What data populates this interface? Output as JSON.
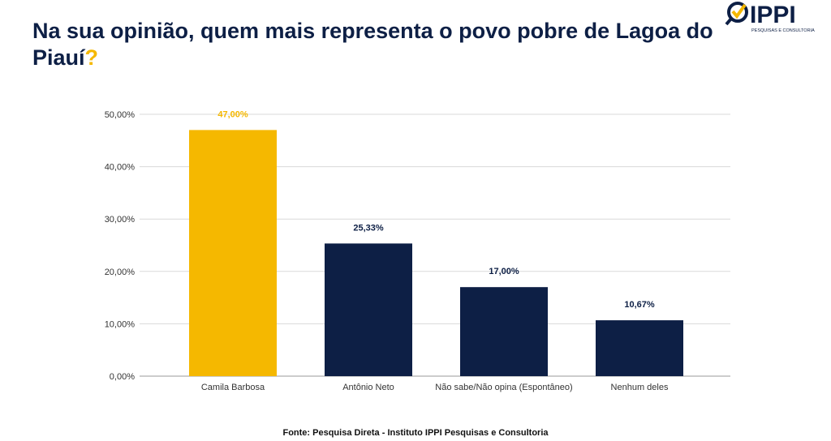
{
  "title": {
    "main": "Na sua opinião, quem mais representa o povo pobre de Lagoa do Piauí",
    "mark": "?"
  },
  "logo": {
    "text": "IPPI",
    "subtitle": "PESQUISAS E CONSULTORIA"
  },
  "footer": "Fonte: Pesquisa Direta - Instituto IPPI Pesquisas e Consultoria",
  "colors": {
    "navy": "#0d1f45",
    "yellow": "#f5b800",
    "grid": "#d9d9d9"
  },
  "chart_data": {
    "type": "bar",
    "categories": [
      "Camila Barbosa",
      "Antônio Neto",
      "Não sabe/Não opina (Espontâneo)",
      "Nenhum deles"
    ],
    "values": [
      47.0,
      25.33,
      17.0,
      10.67
    ],
    "value_labels": [
      "47,00%",
      "25,33%",
      "17,00%",
      "10,67%"
    ],
    "bar_colors": [
      "#f5b800",
      "#0d1f45",
      "#0d1f45",
      "#0d1f45"
    ],
    "ylim": [
      0,
      50
    ],
    "yticks": [
      0,
      10,
      20,
      30,
      40,
      50
    ],
    "ytick_labels": [
      "0,00%",
      "10,00%",
      "20,00%",
      "30,00%",
      "40,00%",
      "50,00%"
    ],
    "grid": true,
    "legend": "none"
  }
}
